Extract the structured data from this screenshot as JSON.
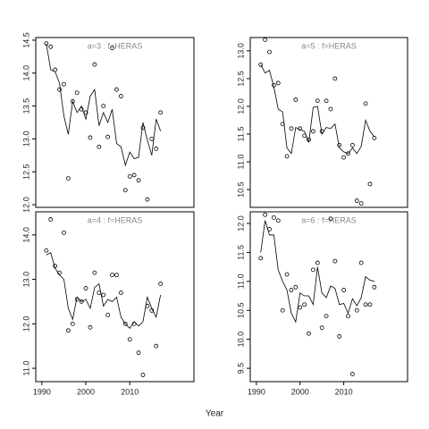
{
  "xlabel": "Year",
  "chart_data": [
    {
      "type": "line",
      "title": "a=3  :  f=HERAS",
      "x": [
        1991,
        1992,
        1993,
        1994,
        1995,
        1996,
        1997,
        1998,
        1999,
        2000,
        2001,
        2002,
        2003,
        2004,
        2005,
        2006,
        2007,
        2008,
        2009,
        2010,
        2011,
        2012,
        2013,
        2014,
        2015,
        2016,
        2017
      ],
      "series": [
        {
          "marker": "circle",
          "color": "#000000",
          "values": [
            14.45,
            14.4,
            14.05,
            13.75,
            13.83,
            12.4,
            13.57,
            13.7,
            13.45,
            13.4,
            13.02,
            14.13,
            12.88,
            13.5,
            13.03,
            14.38,
            13.75,
            13.65,
            12.22,
            12.43,
            12.45,
            12.37,
            13.17,
            12.08,
            13.0,
            12.85,
            13.4
          ]
        },
        {
          "marker": "none",
          "color": "#000000",
          "values": [
            14.45,
            14.05,
            14.02,
            13.85,
            13.35,
            13.07,
            13.57,
            13.4,
            13.5,
            13.3,
            13.65,
            13.75,
            13.2,
            13.4,
            13.25,
            13.45,
            12.93,
            12.88,
            12.6,
            12.8,
            12.7,
            12.72,
            13.25,
            12.98,
            12.75,
            13.3,
            13.12
          ]
        }
      ],
      "xlim": [
        1988.6,
        2024.6
      ],
      "ylim": [
        11.96,
        14.54
      ],
      "yticks": [
        {
          "value": 12,
          "label": "12.0"
        },
        12.5,
        {
          "value": 13,
          "label": "13.0"
        },
        13.5,
        {
          "value": 14,
          "label": "14.0"
        },
        14.5
      ]
    },
    {
      "type": "line",
      "title": "a=5  :  f=HERAS",
      "x": [
        1991,
        1992,
        1993,
        1994,
        1995,
        1996,
        1997,
        1998,
        1999,
        2000,
        2001,
        2002,
        2003,
        2004,
        2005,
        2006,
        2007,
        2008,
        2009,
        2010,
        2011,
        2012,
        2013,
        2014,
        2015,
        2016,
        2017
      ],
      "series": [
        {
          "marker": "circle",
          "color": "#000000",
          "values": [
            12.75,
            13.2,
            12.98,
            12.38,
            12.42,
            11.68,
            11.1,
            11.6,
            12.12,
            11.6,
            11.47,
            11.4,
            11.55,
            12.1,
            11.55,
            12.1,
            11.95,
            12.5,
            11.3,
            11.08,
            11.15,
            11.3,
            10.3,
            10.25,
            12.05,
            10.6,
            11.43
          ]
        },
        {
          "marker": "none",
          "color": "#000000",
          "values": [
            12.75,
            12.6,
            12.65,
            12.35,
            11.95,
            11.9,
            11.25,
            11.15,
            11.62,
            11.58,
            11.55,
            11.35,
            11.98,
            12.0,
            11.5,
            11.62,
            11.6,
            11.68,
            11.25,
            11.18,
            11.15,
            11.25,
            11.15,
            11.28,
            11.75,
            11.55,
            11.45
          ]
        }
      ],
      "xlim": [
        1988.6,
        2024.6
      ],
      "ylim": [
        10.18,
        13.24
      ],
      "yticks": [
        10.5,
        {
          "value": 11,
          "label": "11.0"
        },
        11.5,
        {
          "value": 12,
          "label": "12.0"
        },
        12.5,
        {
          "value": 13,
          "label": "13.0"
        }
      ]
    },
    {
      "type": "line",
      "title": "a=4  :  f=HERAS",
      "x": [
        1991,
        1992,
        1993,
        1994,
        1995,
        1996,
        1997,
        1998,
        1999,
        2000,
        2001,
        2002,
        2003,
        2004,
        2005,
        2006,
        2007,
        2008,
        2009,
        2010,
        2011,
        2012,
        2013,
        2014,
        2015,
        2016,
        2017
      ],
      "series": [
        {
          "marker": "circle",
          "color": "#000000",
          "values": [
            13.65,
            14.35,
            13.3,
            13.15,
            14.05,
            11.85,
            12.0,
            12.55,
            12.5,
            12.8,
            11.92,
            13.15,
            12.7,
            12.65,
            12.2,
            13.1,
            13.1,
            12.7,
            12.0,
            11.65,
            12.0,
            11.35,
            10.85,
            12.4,
            12.3,
            11.5,
            12.9
          ]
        },
        {
          "marker": "none",
          "color": "#000000",
          "values": [
            13.55,
            13.6,
            13.25,
            13.1,
            13.0,
            12.35,
            12.1,
            12.6,
            12.5,
            12.55,
            12.35,
            12.82,
            12.9,
            12.4,
            12.55,
            12.5,
            12.6,
            12.15,
            12.0,
            11.9,
            12.05,
            11.95,
            12.05,
            12.6,
            12.35,
            12.15,
            12.65
          ]
        }
      ],
      "xlim": [
        1988.6,
        2024.6
      ],
      "ylim": [
        10.7,
        14.52
      ],
      "xticks": [
        1990,
        2000,
        2010
      ],
      "yticks": [
        {
          "value": 11,
          "label": "11.0"
        },
        {
          "value": 12,
          "label": "12.0"
        },
        {
          "value": 13,
          "label": "13.0"
        },
        {
          "value": 14,
          "label": "14.0"
        }
      ]
    },
    {
      "type": "line",
      "title": "a=6  :  f=HERAS",
      "x": [
        1991,
        1992,
        1993,
        1994,
        1995,
        1996,
        1997,
        1998,
        1999,
        2000,
        2001,
        2002,
        2003,
        2004,
        2005,
        2006,
        2007,
        2008,
        2009,
        2010,
        2011,
        2012,
        2013,
        2014,
        2015,
        2016,
        2017
      ],
      "series": [
        {
          "marker": "circle",
          "color": "#000000",
          "values": [
            11.4,
            12.15,
            11.9,
            12.1,
            12.05,
            10.5,
            11.12,
            10.85,
            10.9,
            10.55,
            10.6,
            10.1,
            11.2,
            11.32,
            10.2,
            10.4,
            12.08,
            11.35,
            10.05,
            10.85,
            10.4,
            9.4,
            10.5,
            11.32,
            10.6,
            10.6,
            10.9
          ]
        },
        {
          "marker": "none",
          "color": "#000000",
          "values": [
            11.5,
            12.05,
            11.8,
            11.8,
            11.2,
            11.0,
            10.85,
            10.45,
            10.3,
            10.8,
            10.75,
            10.75,
            10.6,
            11.25,
            10.8,
            10.72,
            10.92,
            10.88,
            10.6,
            10.62,
            10.45,
            10.7,
            10.58,
            10.72,
            11.08,
            11.02,
            11.0
          ]
        }
      ],
      "xlim": [
        1988.6,
        2024.6
      ],
      "ylim": [
        9.27,
        12.2
      ],
      "xticks": [
        1990,
        2000,
        2010
      ],
      "yticks": [
        9.5,
        {
          "value": 10,
          "label": "10.0"
        },
        10.5,
        {
          "value": 11,
          "label": "11.0"
        },
        11.5,
        {
          "value": 12,
          "label": "12.0"
        }
      ]
    }
  ]
}
